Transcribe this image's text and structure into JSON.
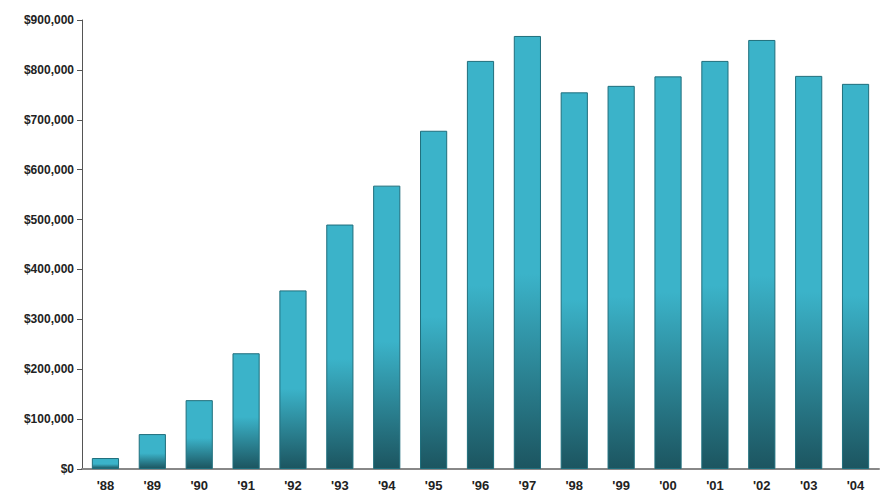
{
  "chart_data": {
    "type": "bar",
    "categories": [
      "'88",
      "'89",
      "'90",
      "'91",
      "'92",
      "'93",
      "'94",
      "'95",
      "'96",
      "'97",
      "'98",
      "'99",
      "'00",
      "'01",
      "'02",
      "'03",
      "'04"
    ],
    "values": [
      22000,
      70000,
      138000,
      232000,
      358000,
      490000,
      568000,
      678000,
      818000,
      868000,
      755000,
      768000,
      787000,
      818000,
      860000,
      788000,
      772000
    ],
    "color": "#3bb3c9",
    "ylim": [
      0,
      900000
    ],
    "yticks": [
      {
        "value": 0,
        "label": "$0"
      },
      {
        "value": 100000,
        "label": "$100,000"
      },
      {
        "value": 200000,
        "label": "$200,000"
      },
      {
        "value": 300000,
        "label": "$300,000"
      },
      {
        "value": 400000,
        "label": "$400,000"
      },
      {
        "value": 500000,
        "label": "$500,000"
      },
      {
        "value": 600000,
        "label": "$600,000"
      },
      {
        "value": 700000,
        "label": "$700,000"
      },
      {
        "value": 800000,
        "label": "$800,000"
      },
      {
        "value": 900000,
        "label": "$900,000"
      }
    ],
    "grid": false
  }
}
